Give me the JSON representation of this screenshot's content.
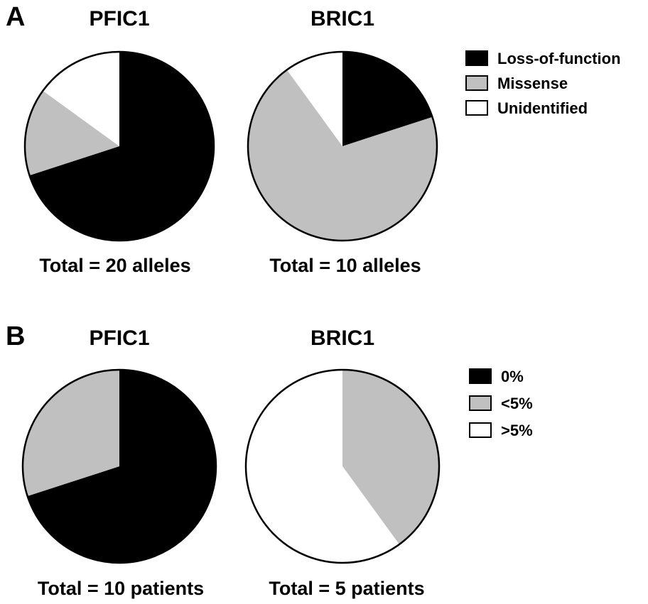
{
  "colors": {
    "black": "#000000",
    "gray": "#c0c0c0",
    "white": "#ffffff",
    "stroke": "#000000"
  },
  "panels": [
    {
      "label": "A",
      "legend": [
        "Loss-of-function",
        "Missense",
        "Unidentified"
      ]
    },
    {
      "label": "B",
      "legend": [
        "0%",
        "<5%",
        ">5%"
      ]
    }
  ],
  "chart_data": [
    {
      "type": "pie",
      "panel": "A",
      "title": "PFIC1",
      "total_label": "Total = 20 alleles",
      "slices": [
        {
          "name": "Loss-of-function",
          "value": 14,
          "color": "#000000"
        },
        {
          "name": "Missense",
          "value": 3,
          "color": "#c0c0c0"
        },
        {
          "name": "Unidentified",
          "value": 3,
          "color": "#ffffff"
        }
      ]
    },
    {
      "type": "pie",
      "panel": "A",
      "title": "BRIC1",
      "total_label": "Total = 10 alleles",
      "slices": [
        {
          "name": "Loss-of-function",
          "value": 2,
          "color": "#000000"
        },
        {
          "name": "Missense",
          "value": 7,
          "color": "#c0c0c0"
        },
        {
          "name": "Unidentified",
          "value": 1,
          "color": "#ffffff"
        }
      ]
    },
    {
      "type": "pie",
      "panel": "B",
      "title": "PFIC1",
      "total_label": "Total = 10 patients",
      "slices": [
        {
          "name": "0%",
          "value": 7,
          "color": "#000000"
        },
        {
          "name": "<5%",
          "value": 3,
          "color": "#c0c0c0"
        },
        {
          "name": ">5%",
          "value": 0,
          "color": "#ffffff"
        }
      ]
    },
    {
      "type": "pie",
      "panel": "B",
      "title": "BRIC1",
      "total_label": "Total = 5 patients",
      "slices": [
        {
          "name": "0%",
          "value": 0,
          "color": "#000000"
        },
        {
          "name": "<5%",
          "value": 2,
          "color": "#c0c0c0"
        },
        {
          "name": ">5%",
          "value": 3,
          "color": "#ffffff"
        }
      ]
    }
  ]
}
